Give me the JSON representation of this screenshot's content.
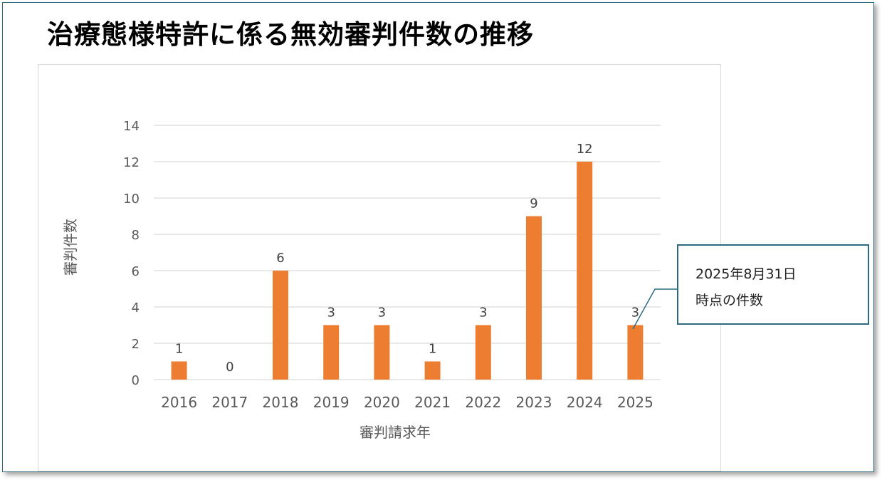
{
  "title": "治療態様特許に係る無効審判件数の推移",
  "callout": {
    "line1": "2025年8月31日",
    "line2": "時点の件数"
  },
  "colors": {
    "bar": "#ED7D31",
    "grid": "#d9d9d9",
    "axis_text": "#595959",
    "frame": "#2e6b82"
  },
  "chart_data": {
    "type": "bar",
    "categories": [
      "2016",
      "2017",
      "2018",
      "2019",
      "2020",
      "2021",
      "2022",
      "2023",
      "2024",
      "2025"
    ],
    "values": [
      1,
      0,
      6,
      3,
      3,
      1,
      3,
      9,
      12,
      3
    ],
    "data_labels": [
      "1",
      "0",
      "6",
      "3",
      "3",
      "1",
      "3",
      "9",
      "12",
      "3"
    ],
    "yticks": [
      "0",
      "2",
      "4",
      "6",
      "8",
      "10",
      "12",
      "14"
    ],
    "xlabel": "審判請求年",
    "ylabel": "審判件数",
    "ylim": [
      0,
      14
    ],
    "grid": true,
    "legend": "none"
  }
}
